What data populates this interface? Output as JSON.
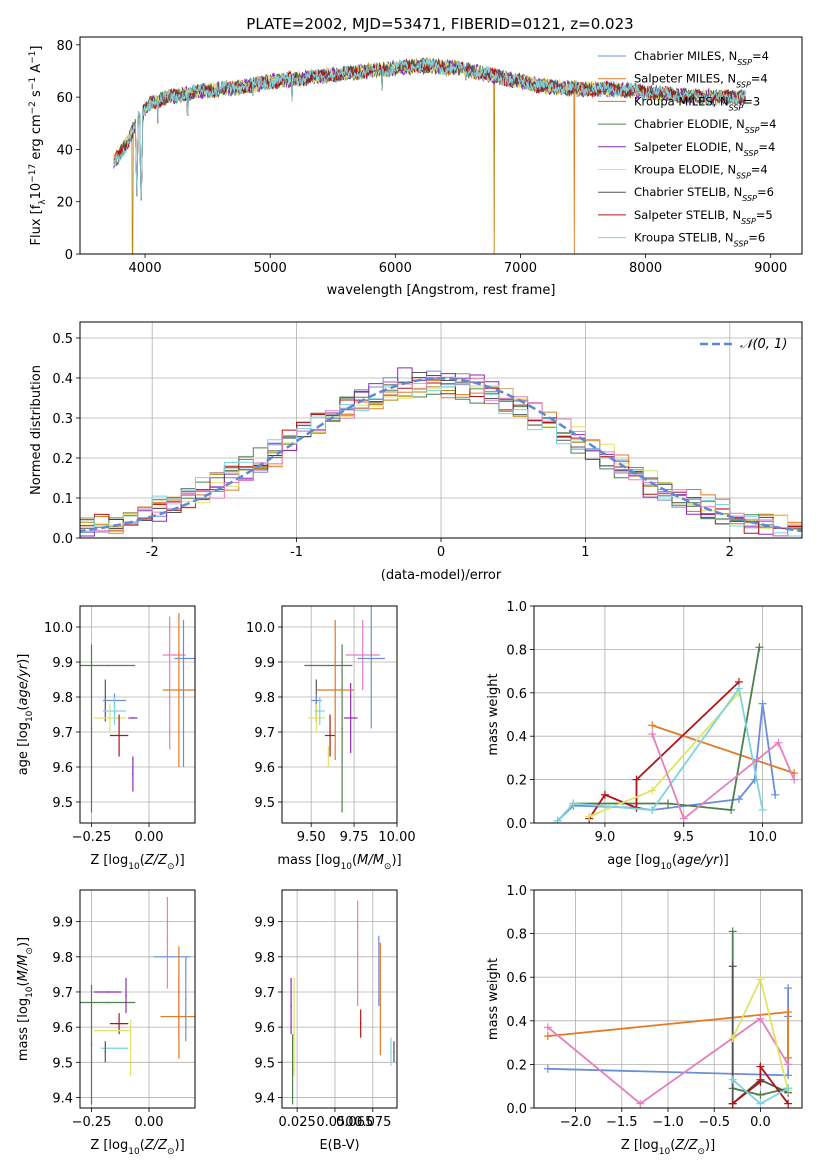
{
  "figure": {
    "title": "PLATE=2002, MJD=53471, FIBERID=0121, z=0.023"
  },
  "colors": {
    "Chabrier MILES": "#6b8fd6",
    "Salpeter MILES": "#e07b27",
    "Kroupa MILES": "#b8860b",
    "Chabrier ELODIE": "#4f7f4f",
    "Salpeter ELODIE": "#8a2bb8",
    "Kroupa ELODIE": "#dfe36a",
    "Chabrier STELIB": "#555555",
    "Salpeter STELIB": "#b01515",
    "Kroupa STELIB": "#7fd3dd",
    "pink": "#e57fbd",
    "orange": "#e07b27"
  },
  "legend_entries": [
    {
      "label": "Chabrier MILES, N",
      "n": "=4"
    },
    {
      "label": "Salpeter MILES, N",
      "n": "=4"
    },
    {
      "label": "Kroupa MILES, N",
      "n": "=3"
    },
    {
      "label": "Chabrier ELODIE, N",
      "n": "=4"
    },
    {
      "label": "Salpeter ELODIE, N",
      "n": "=4"
    },
    {
      "label": "Kroupa ELODIE, N",
      "n": "=4"
    },
    {
      "label": "Chabrier STELIB, N",
      "n": "=6"
    },
    {
      "label": "Salpeter STELIB, N",
      "n": "=5"
    },
    {
      "label": "Kroupa STELIB, N",
      "n": "=6"
    }
  ],
  "chart_data": [
    {
      "id": "spectrum",
      "type": "line",
      "xlabel": "wavelength [Angstrom, rest frame]",
      "ylabel_text": "Flux [f",
      "xlim": [
        3480,
        9250
      ],
      "ylim": [
        0,
        83
      ],
      "xticks": [
        4000,
        5000,
        6000,
        7000,
        8000,
        9000
      ],
      "yticks": [
        0,
        20,
        40,
        60,
        80
      ],
      "continuum": {
        "x": [
          3750,
          3850,
          3950,
          4050,
          4200,
          4400,
          4600,
          4800,
          5000,
          5200,
          5400,
          5600,
          5800,
          6000,
          6200,
          6500,
          6800,
          7000,
          7200,
          7500,
          7800,
          8000,
          8200,
          8500,
          8800
        ],
        "y": [
          35,
          42,
          52,
          58,
          60,
          62,
          63,
          64,
          66,
          67,
          68,
          69,
          70,
          71,
          72,
          71,
          68,
          66,
          64,
          63,
          63,
          62,
          61,
          60,
          60
        ]
      },
      "absorption_lines": [
        {
          "x": 3934,
          "y": 22
        },
        {
          "x": 3969,
          "y": 18
        },
        {
          "x": 4102,
          "y": 50
        },
        {
          "x": 4340,
          "y": 48
        },
        {
          "x": 4861,
          "y": 58
        },
        {
          "x": 5175,
          "y": 56
        },
        {
          "x": 5893,
          "y": 60
        },
        {
          "x": 6563,
          "y": 64
        }
      ],
      "dropouts": [
        {
          "x": 3900,
          "series": "Kroupa MILES"
        },
        {
          "x": 6790,
          "series": "Kroupa MILES"
        },
        {
          "x": 7430,
          "series": "Salpeter MILES"
        }
      ]
    },
    {
      "id": "residuals",
      "type": "histogram",
      "xlabel": "(data-model)/error",
      "ylabel": "Normed distribution",
      "xlim": [
        -2.5,
        2.5
      ],
      "ylim": [
        0,
        0.54
      ],
      "xticks": [
        -2,
        -1,
        0,
        1,
        2
      ],
      "yticks": [
        0.0,
        0.1,
        0.2,
        0.3,
        0.4,
        0.5
      ],
      "bin_width": 0.1,
      "legend": "N(0,1)",
      "curve": "standard normal density"
    },
    {
      "id": "age_vs_Z",
      "type": "errorbar",
      "xlabel": "Z [log",
      "ylabel": "age  [log",
      "xlim": [
        -0.3,
        0.2
      ],
      "ylim": [
        9.44,
        10.06
      ],
      "xticks": [
        -0.25,
        0.0
      ],
      "xticklabels": [
        "−0.25",
        "0.00"
      ],
      "yticks": [
        9.5,
        9.6,
        9.7,
        9.8,
        9.9,
        10.0
      ],
      "points": [
        {
          "series": "Chabrier ELODIE",
          "x": -0.25,
          "y": 9.71,
          "xerr": 0,
          "yerr": 0.24
        },
        {
          "series": "Chabrier ELODIE",
          "x": -0.18,
          "y": 9.89,
          "xerr": 0.12,
          "yerr": 0
        },
        {
          "series": "Chabrier STELIB",
          "x": -0.19,
          "y": 9.79,
          "xerr": 0,
          "yerr": 0.06
        },
        {
          "series": "Chabrier MILES",
          "x": -0.15,
          "y": 9.79,
          "xerr": 0.05,
          "yerr": 0.02
        },
        {
          "series": "Kroupa ELODIE",
          "x": -0.17,
          "y": 9.74,
          "xerr": 0.07,
          "yerr": 0.04
        },
        {
          "series": "Kroupa STELIB",
          "x": -0.15,
          "y": 9.76,
          "xerr": 0.05,
          "yerr": 0.04
        },
        {
          "series": "Salpeter STELIB",
          "x": -0.13,
          "y": 9.69,
          "xerr": 0.04,
          "yerr": 0.06
        },
        {
          "series": "Salpeter ELODIE",
          "x": -0.07,
          "y": 9.58,
          "xerr": 0,
          "yerr": 0.05
        },
        {
          "series": "Salpeter ELODIE",
          "x": -0.07,
          "y": 9.74,
          "xerr": 0.02,
          "yerr": 0
        },
        {
          "series": "pink",
          "x": 0.09,
          "y": 9.84,
          "xerr": 0,
          "yerr": 0.19
        },
        {
          "series": "pink",
          "x": 0.11,
          "y": 9.92,
          "xerr": 0.05,
          "yerr": 0
        },
        {
          "series": "orange",
          "x": 0.13,
          "y": 9.82,
          "xerr": 0.07,
          "yerr": 0.22
        },
        {
          "series": "Chabrier MILES",
          "x": 0.15,
          "y": 9.81,
          "xerr": 0,
          "yerr": 0.21
        },
        {
          "series": "Chabrier MILES",
          "x": 0.16,
          "y": 9.91,
          "xerr": 0.05,
          "yerr": 0
        }
      ]
    },
    {
      "id": "age_vs_mass",
      "type": "errorbar",
      "xlabel": "mass [log",
      "ylabel": "",
      "xlim": [
        9.33,
        10.0
      ],
      "ylim": [
        9.44,
        10.06
      ],
      "xticks": [
        9.5,
        9.75,
        10.0
      ],
      "xticklabels": [
        "9.50",
        "9.75",
        "10.00"
      ],
      "yticks": [
        9.5,
        9.6,
        9.7,
        9.8,
        9.9,
        10.0
      ],
      "points": [
        {
          "series": "Chabrier ELODIE",
          "x": 9.6,
          "y": 9.89,
          "xerr": 0.14,
          "yerr": 0
        },
        {
          "series": "Chabrier ELODIE",
          "x": 9.68,
          "y": 9.71,
          "xerr": 0,
          "yerr": 0.24
        },
        {
          "series": "Chabrier STELIB",
          "x": 9.53,
          "y": 9.79,
          "xerr": 0,
          "yerr": 0.06
        },
        {
          "series": "Chabrier MILES",
          "x": 9.53,
          "y": 9.79,
          "xerr": 0.03,
          "yerr": 0.02
        },
        {
          "series": "Kroupa ELODIE",
          "x": 9.53,
          "y": 9.74,
          "xerr": 0.05,
          "yerr": 0.04
        },
        {
          "series": "Kroupa STELIB",
          "x": 9.55,
          "y": 9.76,
          "xerr": 0.03,
          "yerr": 0.04
        },
        {
          "series": "Salpeter STELIB",
          "x": 9.61,
          "y": 9.69,
          "xerr": 0.03,
          "yerr": 0.06
        },
        {
          "series": "Salpeter ELODIE",
          "x": 9.73,
          "y": 9.74,
          "xerr": 0.04,
          "yerr": 0.1
        },
        {
          "series": "orange",
          "x": 9.64,
          "y": 9.82,
          "xerr": 0.11,
          "yerr": 0.2
        },
        {
          "series": "pink",
          "x": 9.8,
          "y": 9.92,
          "xerr": 0.1,
          "yerr": 0.1
        },
        {
          "series": "Chabrier MILES",
          "x": 9.85,
          "y": 9.91,
          "xerr": 0.08,
          "yerr": 0.2
        },
        {
          "series": "Kroupa ELODIE",
          "x": 9.6,
          "y": 9.63,
          "xerr": 0,
          "yerr": 0.03
        }
      ]
    },
    {
      "id": "massweight_vs_age",
      "type": "line",
      "xlabel": "age  [log",
      "ylabel": "mass weight",
      "xlim": [
        8.55,
        10.25
      ],
      "ylim": [
        0,
        1.0
      ],
      "xticks": [
        9.0,
        9.5,
        10.0
      ],
      "xticklabels": [
        "9.0",
        "9.5",
        "10.0"
      ],
      "yticks": [
        0.0,
        0.2,
        0.4,
        0.6,
        0.8,
        1.0
      ],
      "series": [
        {
          "name": "Chabrier MILES",
          "x": [
            8.7,
            8.8,
            9.2,
            9.3,
            9.85,
            9.95,
            10.0,
            10.08
          ],
          "y": [
            0.01,
            0.08,
            0.07,
            0.06,
            0.11,
            0.2,
            0.55,
            0.13
          ]
        },
        {
          "name": "Salpeter MILES",
          "x": [
            9.3,
            10.2
          ],
          "y": [
            0.45,
            0.23
          ]
        },
        {
          "name": "Chabrier ELODIE",
          "x": [
            8.8,
            9.4,
            9.8,
            9.98
          ],
          "y": [
            0.09,
            0.09,
            0.06,
            0.81
          ]
        },
        {
          "name": "Salpeter STELIB",
          "x": [
            8.9,
            9.0,
            9.2,
            9.2,
            9.85
          ],
          "y": [
            0.02,
            0.13,
            0.07,
            0.2,
            0.65
          ]
        },
        {
          "name": "Kroupa ELODIE",
          "x": [
            8.9,
            9.3,
            9.85
          ],
          "y": [
            0.03,
            0.15,
            0.6
          ]
        },
        {
          "name": "Kroupa STELIB",
          "x": [
            8.7,
            8.8,
            9.3,
            9.85,
            10.0
          ],
          "y": [
            0.01,
            0.09,
            0.06,
            0.62,
            0.06
          ]
        },
        {
          "name": "pink",
          "x": [
            9.3,
            9.5,
            10.1,
            10.2
          ],
          "y": [
            0.41,
            0.02,
            0.37,
            0.2
          ]
        }
      ]
    },
    {
      "id": "mass_vs_Z",
      "type": "errorbar",
      "xlabel": "Z [log",
      "ylabel": "mass [log",
      "xlim": [
        -0.3,
        0.2
      ],
      "ylim": [
        9.37,
        9.99
      ],
      "xticks": [
        -0.25,
        0.0
      ],
      "xticklabels": [
        "−0.25",
        "0.00"
      ],
      "yticks": [
        9.4,
        9.5,
        9.6,
        9.7,
        9.8,
        9.9
      ],
      "points": [
        {
          "series": "Chabrier ELODIE",
          "x": -0.25,
          "y": 9.55,
          "xerr": 0,
          "yerr": 0.17
        },
        {
          "series": "Chabrier ELODIE",
          "x": -0.18,
          "y": 9.67,
          "xerr": 0.12,
          "yerr": 0
        },
        {
          "series": "Salpeter ELODIE",
          "x": -0.18,
          "y": 9.7,
          "xerr": 0.06,
          "yerr": 0
        },
        {
          "series": "Salpeter ELODIE",
          "x": -0.1,
          "y": 9.69,
          "xerr": 0,
          "yerr": 0.05
        },
        {
          "series": "Salpeter STELIB",
          "x": -0.13,
          "y": 9.61,
          "xerr": 0.04,
          "yerr": 0.03
        },
        {
          "series": "Kroupa ELODIE",
          "x": -0.16,
          "y": 9.59,
          "xerr": 0.08,
          "yerr": 0
        },
        {
          "series": "Kroupa ELODIE",
          "x": -0.08,
          "y": 9.54,
          "xerr": 0,
          "yerr": 0.08
        },
        {
          "series": "Kroupa STELIB",
          "x": -0.15,
          "y": 9.54,
          "xerr": 0.06,
          "yerr": 0
        },
        {
          "series": "Chabrier STELIB",
          "x": -0.19,
          "y": 9.53,
          "xerr": 0,
          "yerr": 0.03
        },
        {
          "series": "pink",
          "x": 0.08,
          "y": 9.84,
          "xerr": 0,
          "yerr": 0.13
        },
        {
          "series": "Chabrier MILES",
          "x": 0.1,
          "y": 9.8,
          "xerr": 0.08,
          "yerr": 0
        },
        {
          "series": "orange",
          "x": 0.13,
          "y": 9.63,
          "xerr": 0.08,
          "yerr": 0.12
        },
        {
          "series": "orange",
          "x": 0.13,
          "y": 9.7,
          "xerr": 0,
          "yerr": 0.13
        },
        {
          "series": "Chabrier MILES",
          "x": 0.16,
          "y": 9.68,
          "xerr": 0,
          "yerr": 0.12
        }
      ]
    },
    {
      "id": "mass_vs_EBV",
      "type": "errorbar",
      "xlabel": "E(B-V)",
      "ylabel": "",
      "xlim": [
        0.015,
        0.091
      ],
      "ylim": [
        9.37,
        9.99
      ],
      "xticks": [
        0.025,
        0.05,
        0.075
      ],
      "xticklabels": [
        "0.025",
        "0.050",
        "0.075"
      ],
      "xticks_minor_label": "0.065",
      "yticks": [
        9.4,
        9.5,
        9.6,
        9.7,
        9.8,
        9.9
      ],
      "points": [
        {
          "series": "Salpeter ELODIE",
          "x": 0.021,
          "y": 9.66,
          "xerr": 0,
          "yerr": 0.08
        },
        {
          "series": "Chabrier ELODIE",
          "x": 0.022,
          "y": 9.48,
          "xerr": 0,
          "yerr": 0.1
        },
        {
          "series": "Kroupa ELODIE",
          "x": 0.023,
          "y": 9.6,
          "xerr": 0,
          "yerr": 0.14
        },
        {
          "series": "pink",
          "x": 0.065,
          "y": 9.81,
          "xerr": 0,
          "yerr": 0.15
        },
        {
          "series": "Salpeter STELIB",
          "x": 0.067,
          "y": 9.61,
          "xerr": 0,
          "yerr": 0.04
        },
        {
          "series": "Chabrier MILES",
          "x": 0.079,
          "y": 9.76,
          "xerr": 0,
          "yerr": 0.1
        },
        {
          "series": "orange",
          "x": 0.08,
          "y": 9.68,
          "xerr": 0,
          "yerr": 0.16
        },
        {
          "series": "Kroupa STELIB",
          "x": 0.087,
          "y": 9.53,
          "xerr": 0,
          "yerr": 0.04
        },
        {
          "series": "Chabrier STELIB",
          "x": 0.089,
          "y": 9.53,
          "xerr": 0,
          "yerr": 0.03
        }
      ]
    },
    {
      "id": "massweight_vs_Z",
      "type": "line",
      "xlabel": "Z [log",
      "ylabel": "mass weight",
      "xlim": [
        -2.45,
        0.45
      ],
      "ylim": [
        0,
        1.0
      ],
      "xticks": [
        -2.0,
        -1.5,
        -1.0,
        -0.5,
        0.0
      ],
      "xticklabels": [
        "−2.0",
        "−1.5",
        "−1.0",
        "−0.5",
        "0.0"
      ],
      "yticks": [
        0.0,
        0.2,
        0.4,
        0.6,
        0.8,
        1.0
      ],
      "series": [
        {
          "name": "Chabrier MILES",
          "x": [
            -2.3,
            0.3,
            0.3,
            0.3
          ],
          "y": [
            0.18,
            0.15,
            0.55,
            0.42
          ]
        },
        {
          "name": "Salpeter MILES",
          "x": [
            -2.3,
            0.3,
            0.3
          ],
          "y": [
            0.33,
            0.44,
            0.23
          ]
        },
        {
          "name": "pink",
          "x": [
            -2.3,
            -1.3,
            0.0,
            0.3
          ],
          "y": [
            0.37,
            0.02,
            0.41,
            0.2
          ]
        },
        {
          "name": "Chabrier ELODIE",
          "x": [
            -0.3,
            -0.3,
            0.0,
            0.3
          ],
          "y": [
            0.81,
            0.09,
            0.06,
            0.09
          ]
        },
        {
          "name": "Chabrier STELIB",
          "x": [
            -0.3,
            -0.3,
            0.0,
            0.3
          ],
          "y": [
            0.65,
            0.02,
            0.13,
            0.07
          ]
        },
        {
          "name": "Kroupa ELODIE",
          "x": [
            -0.3,
            0.0,
            0.3
          ],
          "y": [
            0.32,
            0.59,
            0.08
          ]
        },
        {
          "name": "Salpeter STELIB",
          "x": [
            -0.3,
            0.0,
            0.0,
            0.3
          ],
          "y": [
            0.02,
            0.12,
            0.19,
            0.02
          ]
        },
        {
          "name": "Kroupa STELIB",
          "x": [
            -0.3,
            0.0,
            0.3
          ],
          "y": [
            0.13,
            0.02,
            0.09
          ]
        }
      ]
    }
  ]
}
